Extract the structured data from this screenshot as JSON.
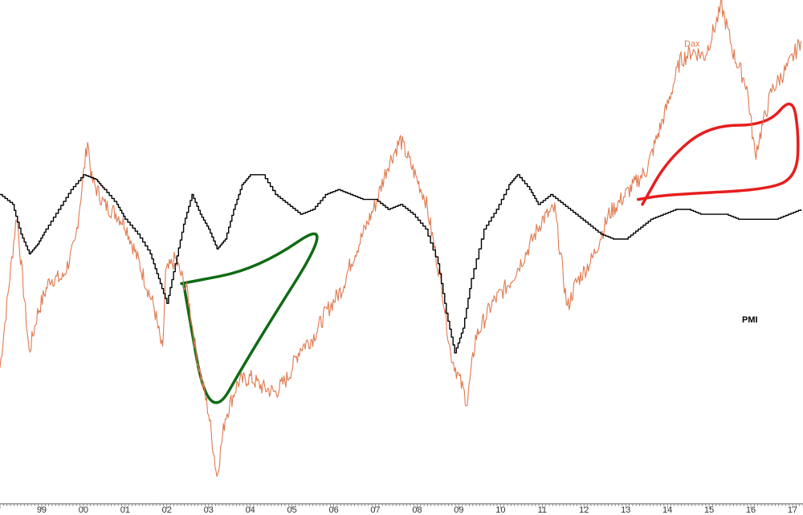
{
  "chart_data": {
    "type": "line",
    "title": "",
    "xlabel": "",
    "ylabel": "",
    "grid": false,
    "legend": "inline-labels",
    "x_ticks": [
      "99",
      "00",
      "01",
      "02",
      "03",
      "04",
      "05",
      "06",
      "07",
      "08",
      "09",
      "10",
      "11",
      "12",
      "13",
      "14",
      "15",
      "16",
      "17"
    ],
    "series": [
      {
        "name": "Dax",
        "color": "#e07a50",
        "style": "line",
        "points": [
          [
            1998.0,
            0.27
          ],
          [
            1998.4,
            0.58
          ],
          [
            1998.7,
            0.3
          ],
          [
            1998.9,
            0.38
          ],
          [
            1999.2,
            0.45
          ],
          [
            1999.5,
            0.45
          ],
          [
            1999.8,
            0.52
          ],
          [
            2000.1,
            0.73
          ],
          [
            2000.2,
            0.65
          ],
          [
            2000.5,
            0.6
          ],
          [
            2000.8,
            0.58
          ],
          [
            2001.0,
            0.56
          ],
          [
            2001.3,
            0.49
          ],
          [
            2001.5,
            0.44
          ],
          [
            2001.7,
            0.39
          ],
          [
            2001.9,
            0.3
          ],
          [
            2001.97,
            0.46
          ],
          [
            2002.2,
            0.49
          ],
          [
            2002.5,
            0.42
          ],
          [
            2002.7,
            0.3
          ],
          [
            2003.0,
            0.18
          ],
          [
            2003.2,
            0.05
          ],
          [
            2003.4,
            0.17
          ],
          [
            2003.7,
            0.24
          ],
          [
            2004.0,
            0.25
          ],
          [
            2004.3,
            0.23
          ],
          [
            2004.6,
            0.22
          ],
          [
            2004.9,
            0.25
          ],
          [
            2005.2,
            0.31
          ],
          [
            2005.5,
            0.33
          ],
          [
            2005.8,
            0.38
          ],
          [
            2006.2,
            0.43
          ],
          [
            2006.4,
            0.48
          ],
          [
            2006.7,
            0.54
          ],
          [
            2007.0,
            0.6
          ],
          [
            2007.3,
            0.68
          ],
          [
            2007.6,
            0.73
          ],
          [
            2007.9,
            0.67
          ],
          [
            2008.2,
            0.61
          ],
          [
            2008.6,
            0.43
          ],
          [
            2008.8,
            0.3
          ],
          [
            2009.2,
            0.2
          ],
          [
            2009.4,
            0.33
          ],
          [
            2009.8,
            0.4
          ],
          [
            2010.2,
            0.44
          ],
          [
            2010.6,
            0.5
          ],
          [
            2011.0,
            0.57
          ],
          [
            2011.3,
            0.59
          ],
          [
            2011.6,
            0.39
          ],
          [
            2011.8,
            0.44
          ],
          [
            2012.2,
            0.49
          ],
          [
            2012.6,
            0.58
          ],
          [
            2013.0,
            0.62
          ],
          [
            2013.5,
            0.67
          ],
          [
            2014.0,
            0.8
          ],
          [
            2014.3,
            0.89
          ],
          [
            2014.6,
            0.91
          ],
          [
            2014.9,
            0.9
          ],
          [
            2015.3,
            1.0
          ],
          [
            2015.6,
            0.9
          ],
          [
            2015.9,
            0.84
          ],
          [
            2016.1,
            0.7
          ],
          [
            2016.5,
            0.83
          ],
          [
            2016.9,
            0.88
          ],
          [
            2017.2,
            0.93
          ]
        ]
      },
      {
        "name": "PMI",
        "color": "#000000",
        "style": "step",
        "points": [
          [
            1998.0,
            0.62
          ],
          [
            1998.3,
            0.6
          ],
          [
            1998.5,
            0.54
          ],
          [
            1998.7,
            0.5
          ],
          [
            1998.9,
            0.52
          ],
          [
            1999.1,
            0.55
          ],
          [
            1999.4,
            0.59
          ],
          [
            1999.7,
            0.63
          ],
          [
            2000.0,
            0.66
          ],
          [
            2000.3,
            0.65
          ],
          [
            2000.5,
            0.63
          ],
          [
            2000.8,
            0.6
          ],
          [
            2001.0,
            0.57
          ],
          [
            2001.3,
            0.54
          ],
          [
            2001.6,
            0.5
          ],
          [
            2001.8,
            0.45
          ],
          [
            2002.0,
            0.4
          ],
          [
            2002.2,
            0.48
          ],
          [
            2002.4,
            0.56
          ],
          [
            2002.6,
            0.62
          ],
          [
            2002.8,
            0.58
          ],
          [
            2003.0,
            0.55
          ],
          [
            2003.2,
            0.51
          ],
          [
            2003.4,
            0.53
          ],
          [
            2003.6,
            0.59
          ],
          [
            2003.8,
            0.64
          ],
          [
            2004.0,
            0.66
          ],
          [
            2004.3,
            0.66
          ],
          [
            2004.6,
            0.62
          ],
          [
            2004.9,
            0.6
          ],
          [
            2005.2,
            0.58
          ],
          [
            2005.5,
            0.59
          ],
          [
            2005.8,
            0.62
          ],
          [
            2006.1,
            0.63
          ],
          [
            2006.4,
            0.62
          ],
          [
            2006.7,
            0.61
          ],
          [
            2007.0,
            0.61
          ],
          [
            2007.3,
            0.59
          ],
          [
            2007.6,
            0.6
          ],
          [
            2007.9,
            0.58
          ],
          [
            2008.2,
            0.55
          ],
          [
            2008.5,
            0.48
          ],
          [
            2008.7,
            0.38
          ],
          [
            2008.9,
            0.3
          ],
          [
            2009.1,
            0.35
          ],
          [
            2009.3,
            0.45
          ],
          [
            2009.6,
            0.55
          ],
          [
            2009.9,
            0.59
          ],
          [
            2010.2,
            0.64
          ],
          [
            2010.4,
            0.66
          ],
          [
            2010.7,
            0.63
          ],
          [
            2010.9,
            0.6
          ],
          [
            2011.2,
            0.62
          ],
          [
            2011.5,
            0.6
          ],
          [
            2011.8,
            0.58
          ],
          [
            2012.1,
            0.56
          ],
          [
            2012.4,
            0.54
          ],
          [
            2012.7,
            0.53
          ],
          [
            2013.0,
            0.53
          ],
          [
            2013.3,
            0.55
          ],
          [
            2013.6,
            0.57
          ],
          [
            2013.9,
            0.58
          ],
          [
            2014.2,
            0.59
          ],
          [
            2014.5,
            0.59
          ],
          [
            2014.8,
            0.58
          ],
          [
            2015.1,
            0.58
          ],
          [
            2015.4,
            0.58
          ],
          [
            2015.7,
            0.57
          ],
          [
            2016.0,
            0.57
          ],
          [
            2016.3,
            0.57
          ],
          [
            2016.6,
            0.57
          ],
          [
            2016.9,
            0.58
          ],
          [
            2017.2,
            0.59
          ]
        ]
      }
    ],
    "annotations": [
      {
        "shape": "hand-drawn-loop",
        "color": "#0f6b14",
        "points": [
          [
            2002.35,
            0.44
          ],
          [
            2004.2,
            0.47
          ],
          [
            2006.1,
            0.58
          ],
          [
            2004.0,
            0.3
          ],
          [
            2003.0,
            0.15
          ],
          [
            2002.4,
            0.44
          ]
        ]
      },
      {
        "shape": "hand-drawn-loop",
        "color": "#e61e1e",
        "points": [
          [
            2013.3,
            0.61
          ],
          [
            2014.0,
            0.62
          ],
          [
            2016.5,
            0.63
          ],
          [
            2017.1,
            0.66
          ],
          [
            2017.15,
            0.74
          ],
          [
            2017.0,
            0.82
          ],
          [
            2016.4,
            0.76
          ],
          [
            2015.0,
            0.76
          ],
          [
            2014.0,
            0.69
          ],
          [
            2013.4,
            0.6
          ]
        ]
      }
    ]
  }
}
